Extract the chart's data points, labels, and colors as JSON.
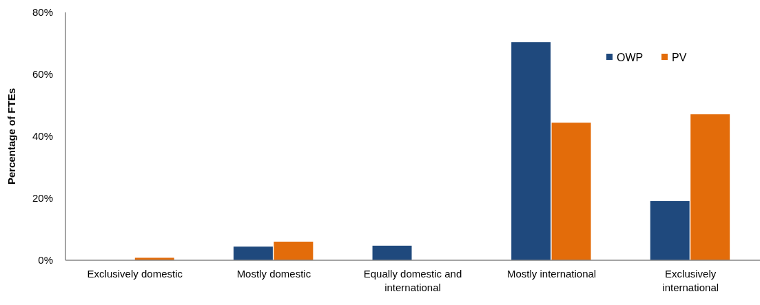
{
  "chart_data": {
    "type": "bar",
    "ylabel": "Percentage of FTEs",
    "categories": [
      "Exclusively domestic",
      "Mostly domestic",
      "Equally domestic and international",
      "Mostly international",
      "Exclusively international"
    ],
    "series": [
      {
        "name": "OWP",
        "color": "#1f497d",
        "values": [
          0,
          4.4,
          4.7,
          70.4,
          19.1
        ]
      },
      {
        "name": "PV",
        "color": "#e36c0a",
        "values": [
          0.8,
          6.0,
          0,
          44.4,
          47.1
        ]
      }
    ],
    "ylim": [
      0,
      80
    ],
    "yticks": [
      {
        "value": 0,
        "label": "0%"
      },
      {
        "value": 20,
        "label": "20%"
      },
      {
        "value": 40,
        "label": "40%"
      },
      {
        "value": 60,
        "label": "60%"
      },
      {
        "value": 80,
        "label": "80%"
      }
    ],
    "grid": false,
    "legend": "top right"
  }
}
